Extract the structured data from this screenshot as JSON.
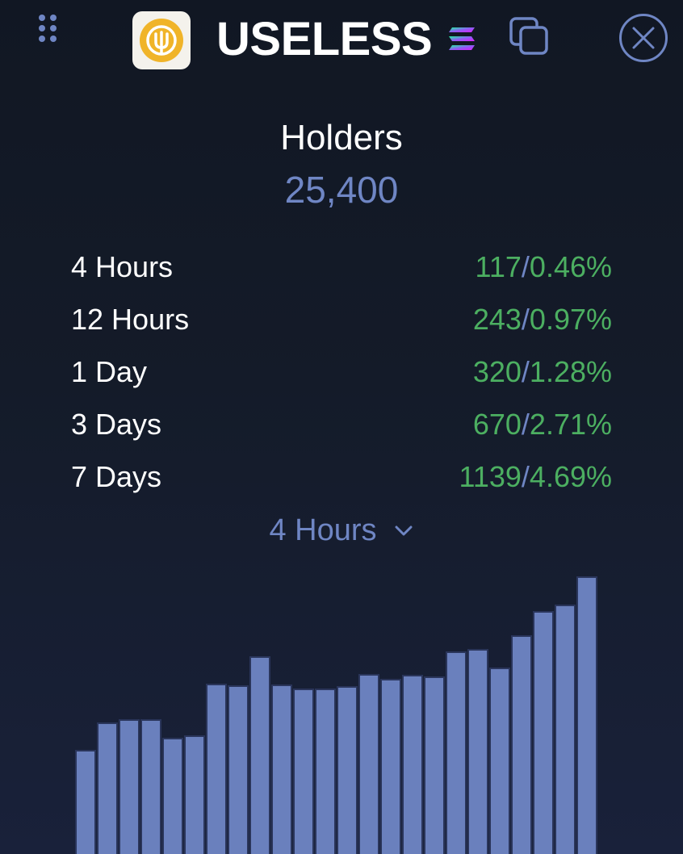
{
  "header": {
    "token_name": "USELESS",
    "icons": {
      "drag": "drag-handle-icon",
      "logo": "useless-token-logo",
      "chain": "solana-icon",
      "copy": "copy-icon",
      "close": "close-icon"
    }
  },
  "holders": {
    "label": "Holders",
    "value": "25,400"
  },
  "stats": [
    {
      "label": "4 Hours",
      "count": "117",
      "percent": "0.46%"
    },
    {
      "label": "12 Hours",
      "count": "243",
      "percent": "0.97%"
    },
    {
      "label": "1 Day",
      "count": "320",
      "percent": "1.28%"
    },
    {
      "label": "3 Days",
      "count": "670",
      "percent": "2.71%"
    },
    {
      "label": "7 Days",
      "count": "1139",
      "percent": "4.69%"
    }
  ],
  "period_select": {
    "selected": "4 Hours"
  },
  "colors": {
    "background": "#141a27",
    "accent": "#6f86c4",
    "positive": "#4caf61",
    "bar": "#6a80bd",
    "bar_outline": "#2a355a",
    "logo_bg": "#f0b429"
  },
  "chart_data": {
    "type": "bar",
    "title": "",
    "xlabel": "",
    "ylabel": "",
    "grid": false,
    "values": [
      128,
      162,
      166,
      166,
      143,
      146,
      210,
      208,
      244,
      209,
      204,
      204,
      207,
      222,
      216,
      221,
      219,
      250,
      253,
      230,
      270,
      300,
      308,
      343
    ],
    "ylim": [
      0,
      358
    ]
  }
}
